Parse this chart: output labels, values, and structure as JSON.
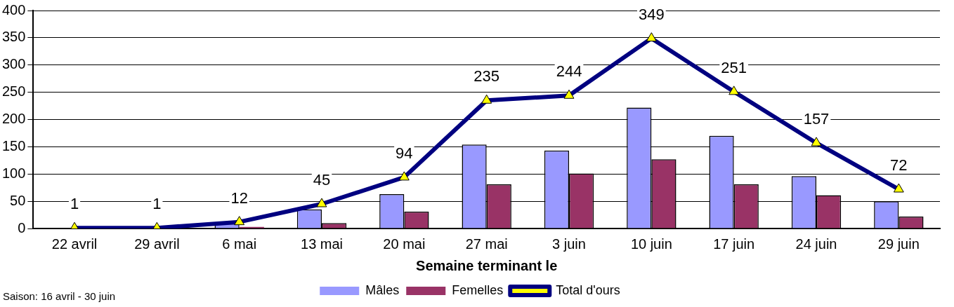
{
  "chart_data": {
    "type": "bar",
    "xlabel": "Semaine terminant le",
    "categories": [
      "22 avril",
      "29 avril",
      "6 mai",
      "13 mai",
      "20 mai",
      "27 mai",
      "3 juin",
      "10 juin",
      "17 juin",
      "24 juin",
      "29 juin"
    ],
    "series": [
      {
        "name": "Mâles",
        "color": "#9999ff",
        "values": [
          null,
          null,
          9,
          35,
          63,
          154,
          143,
          222,
          170,
          96,
          50
        ]
      },
      {
        "name": "Femelles",
        "color": "#993366",
        "values": [
          0,
          0,
          3,
          10,
          31,
          81,
          101,
          127,
          81,
          61,
          22
        ]
      },
      {
        "name": "Total d'ours",
        "type": "line",
        "color": "#000080",
        "marker": "triangle",
        "values": [
          1,
          1,
          12,
          45,
          94,
          235,
          244,
          349,
          251,
          157,
          72
        ],
        "value_labels": [
          "1",
          "1",
          "12",
          "45",
          "94",
          "235",
          "244",
          "349",
          "251",
          "157",
          "72"
        ]
      }
    ],
    "ylim": [
      0,
      400
    ],
    "yticks": [
      0,
      50,
      100,
      150,
      200,
      250,
      300,
      350,
      400
    ],
    "grid": "y",
    "legend": "bottom",
    "annotations": [
      "Saison: 16 avril - 30 juin"
    ]
  }
}
